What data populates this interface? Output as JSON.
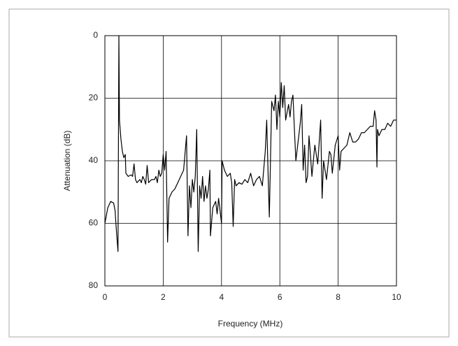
{
  "chart_data": {
    "type": "line",
    "xlabel": "Frequency (MHz)",
    "ylabel": "Attenuation (dB)",
    "xlim": [
      0,
      10
    ],
    "xticks": [
      0,
      2,
      4,
      6,
      8,
      10
    ],
    "ylim": [
      80,
      0
    ],
    "yticks": [
      0,
      20,
      40,
      60,
      80
    ],
    "grid": true,
    "series": [
      {
        "color": "#000000",
        "x": [
          0,
          0.1,
          0.2,
          0.3,
          0.35,
          0.4,
          0.45,
          0.48,
          0.5,
          0.55,
          0.6,
          0.65,
          0.7,
          0.72,
          0.8,
          0.9,
          0.95,
          1.0,
          1.05,
          1.1,
          1.2,
          1.25,
          1.3,
          1.35,
          1.4,
          1.45,
          1.5,
          1.6,
          1.7,
          1.75,
          1.8,
          1.85,
          1.9,
          1.95,
          2.0,
          2.05,
          2.1,
          2.15,
          2.2,
          2.3,
          2.4,
          2.5,
          2.6,
          2.7,
          2.8,
          2.85,
          2.9,
          2.95,
          3.0,
          3.05,
          3.1,
          3.15,
          3.2,
          3.25,
          3.3,
          3.35,
          3.4,
          3.45,
          3.5,
          3.55,
          3.6,
          3.62,
          3.7,
          3.8,
          3.85,
          3.9,
          4.0,
          4.02,
          4.1,
          4.2,
          4.3,
          4.35,
          4.4,
          4.45,
          4.5,
          4.6,
          4.7,
          4.8,
          4.9,
          5.0,
          5.1,
          5.2,
          5.3,
          5.4,
          5.5,
          5.55,
          5.6,
          5.64,
          5.72,
          5.8,
          5.85,
          5.9,
          5.95,
          6.0,
          6.05,
          6.1,
          6.15,
          6.2,
          6.3,
          6.35,
          6.4,
          6.45,
          6.5,
          6.55,
          6.7,
          6.75,
          6.8,
          6.85,
          6.9,
          6.95,
          7.0,
          7.05,
          7.1,
          7.2,
          7.3,
          7.4,
          7.45,
          7.5,
          7.6,
          7.7,
          7.75,
          7.8,
          7.9,
          8.0,
          8.05,
          8.1,
          8.2,
          8.3,
          8.4,
          8.5,
          8.6,
          8.7,
          8.8,
          8.9,
          9.0,
          9.1,
          9.2,
          9.25,
          9.3,
          9.33,
          9.35,
          9.4,
          9.5,
          9.6,
          9.7,
          9.8,
          9.9,
          10.0
        ],
        "values": [
          60,
          55,
          53,
          53.5,
          56,
          63,
          69,
          0,
          27,
          33,
          37,
          39,
          38,
          44,
          45,
          44.5,
          45,
          41,
          46,
          47,
          46,
          47,
          45,
          46,
          47.5,
          41.5,
          47,
          46,
          46,
          45,
          47,
          43,
          45,
          44,
          38,
          43,
          37,
          66,
          52,
          50,
          49,
          47,
          45,
          43,
          32,
          64,
          48,
          55,
          46,
          50,
          45,
          30,
          69,
          48,
          52,
          45,
          53,
          48,
          52,
          49,
          43,
          64,
          55,
          53,
          57,
          52,
          60,
          40,
          43,
          45,
          44,
          47,
          61,
          46,
          48,
          47,
          47.5,
          46,
          47,
          44,
          48,
          46,
          45,
          48,
          37,
          27,
          45,
          58,
          21,
          24,
          19,
          30,
          21,
          26,
          15,
          23,
          16,
          27,
          22,
          26,
          21,
          19,
          30,
          40,
          28,
          22,
          43,
          35,
          47,
          45,
          32,
          38,
          45,
          35,
          41,
          27,
          52,
          40,
          46,
          37,
          38,
          44,
          35,
          32,
          43,
          37,
          36,
          35,
          31,
          34,
          34,
          33,
          31,
          31,
          30,
          29,
          29,
          24,
          27,
          42,
          30,
          32,
          30,
          30,
          28,
          29,
          27,
          27
        ]
      }
    ]
  }
}
